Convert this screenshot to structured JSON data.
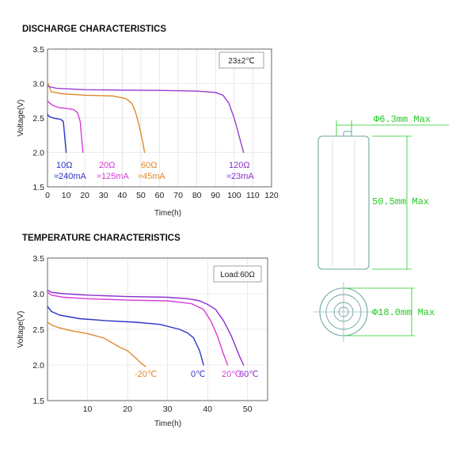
{
  "colors": {
    "blue": "#2a34c8",
    "magenta": "#d83cd8",
    "orange": "#e08a2c",
    "purple": "#8a2fd0",
    "violet": "#9b3bd3",
    "dim_green": "#22cc22",
    "cell_stroke": "#6fa6a0"
  },
  "chart_data": [
    {
      "type": "line",
      "title": "DISCHARGE CHARACTERISTICS",
      "xlabel": "Time(h)",
      "ylabel": "Voltage(V)",
      "xlim": [
        0,
        120
      ],
      "ylim": [
        1.5,
        3.5
      ],
      "xticks": [
        0,
        10,
        20,
        30,
        40,
        50,
        60,
        70,
        80,
        90,
        100,
        110,
        120
      ],
      "yticks": [
        "1.5",
        "2.0",
        "2.5",
        "3.0",
        "3.5"
      ],
      "condition": "23±2℃",
      "grid": true,
      "series": [
        {
          "name": "10Ω",
          "current": "≈240mA",
          "color": "#2a34c8",
          "x": [
            0,
            1,
            3,
            5,
            7,
            8.5,
            9.5,
            10
          ],
          "y": [
            2.55,
            2.52,
            2.5,
            2.49,
            2.48,
            2.45,
            2.15,
            2.0
          ]
        },
        {
          "name": "20Ω",
          "current": "≈125mA",
          "color": "#d83cd8",
          "x": [
            0,
            1,
            3,
            6,
            10,
            14,
            16,
            17.5,
            18.5,
            19
          ],
          "y": [
            2.75,
            2.72,
            2.68,
            2.65,
            2.64,
            2.62,
            2.58,
            2.45,
            2.15,
            2.0
          ]
        },
        {
          "name": "60Ω",
          "current": "≈45mA",
          "color": "#e08a2c",
          "x": [
            0,
            2,
            8,
            20,
            35,
            42,
            45,
            47,
            49,
            51,
            52
          ],
          "y": [
            3.02,
            2.88,
            2.85,
            2.83,
            2.82,
            2.78,
            2.72,
            2.6,
            2.4,
            2.15,
            2.0
          ]
        },
        {
          "name": "120Ω",
          "current": "≈23mA",
          "color": "#9b3bd3",
          "x": [
            0,
            5,
            20,
            40,
            60,
            80,
            90,
            94,
            97,
            100,
            103,
            105
          ],
          "y": [
            2.96,
            2.93,
            2.91,
            2.905,
            2.9,
            2.89,
            2.87,
            2.83,
            2.72,
            2.5,
            2.2,
            2.0
          ]
        }
      ]
    },
    {
      "type": "line",
      "title": "TEMPERATURE CHARACTERISTICS",
      "xlabel": "Time(h)",
      "ylabel": "Voltage(V)",
      "xlim": [
        0,
        55
      ],
      "ylim": [
        1.5,
        3.5
      ],
      "xticks": [
        10,
        20,
        30,
        40,
        50
      ],
      "yticks": [
        "1.5",
        "2.0",
        "2.5",
        "3.0",
        "3.5"
      ],
      "condition": "Load:60Ω",
      "grid": true,
      "series": [
        {
          "name": "-20℃",
          "color": "#e08a2c",
          "x": [
            0,
            1,
            3,
            6,
            10,
            14,
            18,
            20,
            22,
            23.5,
            24.5
          ],
          "y": [
            2.6,
            2.56,
            2.52,
            2.48,
            2.44,
            2.38,
            2.25,
            2.2,
            2.1,
            2.02,
            1.98
          ]
        },
        {
          "name": "0℃",
          "color": "#2a34c8",
          "x": [
            0,
            1,
            3,
            8,
            15,
            22,
            28,
            33,
            35,
            36.5,
            38,
            39
          ],
          "y": [
            2.82,
            2.75,
            2.7,
            2.65,
            2.62,
            2.6,
            2.57,
            2.5,
            2.45,
            2.38,
            2.2,
            2.0
          ]
        },
        {
          "name": "20℃",
          "color": "#d83cd8",
          "x": [
            0,
            1,
            4,
            10,
            20,
            30,
            36,
            39,
            41,
            42.5,
            44,
            45
          ],
          "y": [
            3.02,
            2.98,
            2.95,
            2.93,
            2.91,
            2.9,
            2.86,
            2.78,
            2.6,
            2.4,
            2.15,
            2.0
          ]
        },
        {
          "name": "60℃",
          "color": "#8a2fd0",
          "x": [
            0,
            1,
            4,
            10,
            20,
            30,
            35,
            38,
            40,
            42,
            44,
            46,
            48,
            49
          ],
          "y": [
            3.05,
            3.02,
            3.0,
            2.98,
            2.96,
            2.95,
            2.93,
            2.9,
            2.85,
            2.78,
            2.62,
            2.4,
            2.12,
            2.0
          ]
        }
      ]
    }
  ],
  "diagram": {
    "diameter_top": "Φ6.3mm Max",
    "height": "50.5mm Max",
    "diameter_bottom": "Φ18.0mm Max"
  }
}
